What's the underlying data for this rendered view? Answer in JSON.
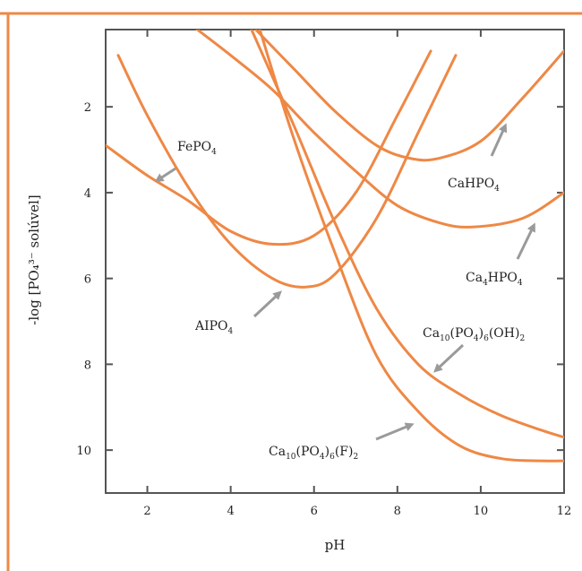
{
  "chart_data": {
    "type": "line",
    "title": "",
    "xlabel": "pH",
    "ylabel": "-log [PO₄³⁻ solúvel]",
    "xlim": [
      1,
      12
    ],
    "ylim": [
      11,
      0.2
    ],
    "y_inverted": true,
    "xticks": [
      2,
      4,
      6,
      8,
      10,
      12
    ],
    "yticks": [
      2,
      4,
      6,
      8,
      10
    ],
    "grid": false,
    "legend": "none",
    "line_color": "#ee8845",
    "frame_color": "#ee8845",
    "arrow_color": "#9a9a9a",
    "series": [
      {
        "label_key": "fepo4",
        "x": [
          1.0,
          2.0,
          3.0,
          4.0,
          5.0,
          6.0,
          7.0,
          8.0,
          8.8
        ],
        "y": [
          2.9,
          3.6,
          4.2,
          4.9,
          5.2,
          5.0,
          4.0,
          2.2,
          0.7
        ]
      },
      {
        "label_key": "aipo4",
        "x": [
          1.3,
          2.0,
          3.0,
          4.0,
          5.0,
          5.8,
          6.5,
          7.5,
          8.5,
          9.4
        ],
        "y": [
          0.8,
          2.2,
          3.9,
          5.2,
          6.0,
          6.2,
          5.9,
          4.6,
          2.6,
          0.8
        ]
      },
      {
        "label_key": "cahpo4",
        "x": [
          4.6,
          5.5,
          6.5,
          7.5,
          8.3,
          9.0,
          10.0,
          11.0,
          12.0
        ],
        "y": [
          0.2,
          1.1,
          2.1,
          2.9,
          3.2,
          3.2,
          2.8,
          1.8,
          0.7
        ]
      },
      {
        "label_key": "ca4hpo4",
        "x": [
          3.2,
          4.0,
          5.0,
          6.0,
          7.0,
          8.0,
          9.0,
          9.8,
          11.0,
          12.0
        ],
        "y": [
          0.2,
          0.8,
          1.6,
          2.6,
          3.5,
          4.3,
          4.7,
          4.8,
          4.6,
          4.0
        ]
      },
      {
        "label_key": "hap",
        "x": [
          4.5,
          5.5,
          6.5,
          7.5,
          8.5,
          9.5,
          10.5,
          11.5,
          12.0
        ],
        "y": [
          0.2,
          2.4,
          4.7,
          6.7,
          8.0,
          8.7,
          9.2,
          9.55,
          9.7
        ]
      },
      {
        "label_key": "fap",
        "x": [
          4.7,
          5.5,
          6.5,
          7.5,
          8.5,
          9.5,
          10.5,
          11.5,
          12.0
        ],
        "y": [
          0.2,
          2.7,
          5.4,
          7.8,
          9.1,
          9.9,
          10.2,
          10.25,
          10.25
        ]
      }
    ],
    "annotations": {
      "fepo4": {
        "main": "FePO",
        "sub1": "4"
      },
      "aipo4": {
        "main": "AIPO",
        "sub1": "4"
      },
      "cahpo4": {
        "main": "CaHPO",
        "sub1": "4"
      },
      "ca4hpo4": {
        "main1": "Ca",
        "sub1": "4",
        "main2": "HPO",
        "sub2": "4"
      },
      "hap": {
        "t1": "Ca",
        "s1": "10",
        "t2": "(PO",
        "s2": "4",
        "t3": ")",
        "s3": "6",
        "t4": "(OH)",
        "s4": "2"
      },
      "fap": {
        "t1": "Ca",
        "s1": "10",
        "t2": "(PO",
        "s2": "4",
        "t3": ")",
        "s3": "6",
        "t4": "(F)",
        "s4": "2"
      }
    }
  }
}
